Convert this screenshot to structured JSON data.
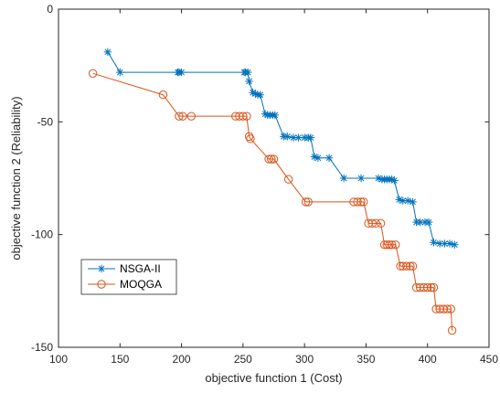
{
  "chart_data": {
    "type": "line",
    "xlabel": "objective function 1 (Cost)",
    "ylabel": "objective function 2 (Reliability)",
    "xlim": [
      100,
      450
    ],
    "ylim": [
      -150,
      0
    ],
    "xticks": [
      100,
      150,
      200,
      250,
      300,
      350,
      400,
      450
    ],
    "yticks": [
      0,
      -50,
      -100,
      -150
    ],
    "grid": false,
    "legend_position": "bottom-left",
    "series": [
      {
        "name": "NSGA-II",
        "color": "#0072BD",
        "marker": "asterisk",
        "points": [
          [
            140,
            -19
          ],
          [
            150,
            -28
          ],
          [
            197,
            -28
          ],
          [
            198,
            -28
          ],
          [
            200,
            -28
          ],
          [
            251,
            -28
          ],
          [
            252,
            -28
          ],
          [
            254,
            -28
          ],
          [
            255,
            -32
          ],
          [
            258,
            -37
          ],
          [
            260,
            -37.5
          ],
          [
            262,
            -38
          ],
          [
            264,
            -38
          ],
          [
            268,
            -46.5
          ],
          [
            270,
            -47
          ],
          [
            272,
            -47
          ],
          [
            274,
            -47
          ],
          [
            276,
            -47
          ],
          [
            283,
            -56.5
          ],
          [
            286,
            -56.5
          ],
          [
            291,
            -57
          ],
          [
            295,
            -57
          ],
          [
            300,
            -57
          ],
          [
            303,
            -57
          ],
          [
            305,
            -57
          ],
          [
            308,
            -65.5
          ],
          [
            311,
            -66
          ],
          [
            320,
            -66
          ],
          [
            332,
            -75
          ],
          [
            346,
            -75
          ],
          [
            360,
            -75
          ],
          [
            363,
            -75.5
          ],
          [
            365,
            -75.5
          ],
          [
            367,
            -75.5
          ],
          [
            369,
            -75.5
          ],
          [
            371,
            -75.5
          ],
          [
            373,
            -76
          ],
          [
            377,
            -84.5
          ],
          [
            380,
            -85
          ],
          [
            384,
            -85
          ],
          [
            388,
            -85.5
          ],
          [
            391,
            -94.5
          ],
          [
            394,
            -94.5
          ],
          [
            398,
            -94.5
          ],
          [
            401,
            -94.5
          ],
          [
            405,
            -103.5
          ],
          [
            410,
            -104
          ],
          [
            414,
            -104
          ],
          [
            418,
            -104
          ],
          [
            422,
            -104.5
          ]
        ]
      },
      {
        "name": "MOQGA",
        "color": "#D95319",
        "marker": "circle",
        "points": [
          [
            128,
            -28.5
          ],
          [
            185,
            -38
          ],
          [
            198,
            -47.5
          ],
          [
            201,
            -47.5
          ],
          [
            208,
            -47.5
          ],
          [
            244,
            -47.5
          ],
          [
            247,
            -47.5
          ],
          [
            250,
            -47.5
          ],
          [
            253,
            -47.5
          ],
          [
            255,
            -56.5
          ],
          [
            256,
            -57.5
          ],
          [
            271,
            -66.5
          ],
          [
            273,
            -66.5
          ],
          [
            275,
            -66.5
          ],
          [
            287,
            -75.5
          ],
          [
            301,
            -85.5
          ],
          [
            303,
            -85.5
          ],
          [
            340,
            -85.5
          ],
          [
            343,
            -85.5
          ],
          [
            346,
            -85.5
          ],
          [
            348,
            -85.5
          ],
          [
            352,
            -95
          ],
          [
            355,
            -95
          ],
          [
            358,
            -95
          ],
          [
            362,
            -95
          ],
          [
            365,
            -104.5
          ],
          [
            367,
            -104.5
          ],
          [
            369,
            -104.5
          ],
          [
            371,
            -104.5
          ],
          [
            374,
            -104.5
          ],
          [
            378,
            -114
          ],
          [
            380,
            -114
          ],
          [
            383,
            -114
          ],
          [
            386,
            -114
          ],
          [
            388,
            -114
          ],
          [
            391,
            -123.5
          ],
          [
            394,
            -123.5
          ],
          [
            397,
            -123.5
          ],
          [
            400,
            -123.5
          ],
          [
            403,
            -123.5
          ],
          [
            405,
            -123.5
          ],
          [
            407,
            -133
          ],
          [
            410,
            -133
          ],
          [
            413,
            -133
          ],
          [
            416,
            -133
          ],
          [
            419,
            -133
          ],
          [
            420,
            -142.5
          ]
        ]
      }
    ]
  }
}
